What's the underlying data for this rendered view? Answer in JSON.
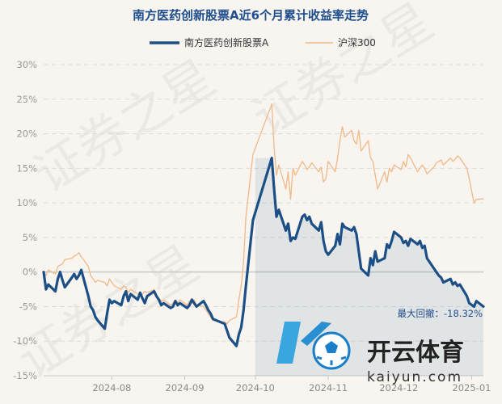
{
  "chart_data": {
    "type": "line",
    "title": "南方医药创新股票A近6个月累计收益率走势",
    "legend_position": "top",
    "y_axis": {
      "min": -15,
      "max": 30,
      "step": 5,
      "ticks": [
        "30%",
        "25%",
        "20%",
        "15%",
        "10%",
        "5%",
        "0%",
        "-5%",
        "-10%",
        "-15%"
      ]
    },
    "x_axis": {
      "range": [
        "2024-07-03",
        "2025-01-06"
      ],
      "ticks": [
        {
          "date": "2024-08-01",
          "label": "2024-08"
        },
        {
          "date": "2024-09-01",
          "label": "2024-09"
        },
        {
          "date": "2024-10-01",
          "label": "2024-10"
        },
        {
          "date": "2024-11-01",
          "label": "2024-11"
        },
        {
          "date": "2024-12-01",
          "label": "2024-12"
        },
        {
          "date": "2025-01-01",
          "label": "2025-01"
        }
      ]
    },
    "grid": "horizontal dashed",
    "drawdown_note": "最大回撤：-18.32%",
    "drawdown_period": [
      "2024-10-01",
      "2025-01-06"
    ],
    "series": [
      {
        "name": "南方医药创新股票A",
        "color": "#1c4f86",
        "points": [
          [
            "2024-07-03",
            0.0
          ],
          [
            "2024-07-04",
            -2.5
          ],
          [
            "2024-07-05",
            -1.8
          ],
          [
            "2024-07-08",
            -2.8
          ],
          [
            "2024-07-09",
            -1.0
          ],
          [
            "2024-07-10",
            0.0
          ],
          [
            "2024-07-11",
            -1.2
          ],
          [
            "2024-07-12",
            -2.2
          ],
          [
            "2024-07-15",
            -0.8
          ],
          [
            "2024-07-16",
            -0.3
          ],
          [
            "2024-07-17",
            -1.0
          ],
          [
            "2024-07-18",
            -0.5
          ],
          [
            "2024-07-19",
            0.3
          ],
          [
            "2024-07-22",
            -3.5
          ],
          [
            "2024-07-23",
            -5.0
          ],
          [
            "2024-07-24",
            -5.5
          ],
          [
            "2024-07-25",
            -6.5
          ],
          [
            "2024-07-26",
            -7.0
          ],
          [
            "2024-07-29",
            -8.2
          ],
          [
            "2024-07-30",
            -6.0
          ],
          [
            "2024-07-31",
            -4.0
          ],
          [
            "2024-08-01",
            -4.5
          ],
          [
            "2024-08-02",
            -4.2
          ],
          [
            "2024-08-05",
            -4.8
          ],
          [
            "2024-08-06",
            -3.5
          ],
          [
            "2024-08-07",
            -2.8
          ],
          [
            "2024-08-08",
            -4.2
          ],
          [
            "2024-08-09",
            -3.2
          ],
          [
            "2024-08-12",
            -4.0
          ],
          [
            "2024-08-13",
            -3.0
          ],
          [
            "2024-08-14",
            -3.8
          ],
          [
            "2024-08-15",
            -4.5
          ],
          [
            "2024-08-16",
            -3.5
          ],
          [
            "2024-08-19",
            -2.8
          ],
          [
            "2024-08-20",
            -3.5
          ],
          [
            "2024-08-21",
            -4.0
          ],
          [
            "2024-08-22",
            -4.8
          ],
          [
            "2024-08-23",
            -4.5
          ],
          [
            "2024-08-26",
            -5.2
          ],
          [
            "2024-08-27",
            -5.0
          ],
          [
            "2024-08-28",
            -4.2
          ],
          [
            "2024-08-29",
            -4.8
          ],
          [
            "2024-08-30",
            -4.5
          ],
          [
            "2024-09-02",
            -5.2
          ],
          [
            "2024-09-03",
            -4.8
          ],
          [
            "2024-09-04",
            -4.0
          ],
          [
            "2024-09-05",
            -4.5
          ],
          [
            "2024-09-06",
            -5.0
          ],
          [
            "2024-09-09",
            -4.2
          ],
          [
            "2024-09-10",
            -4.8
          ],
          [
            "2024-09-11",
            -5.5
          ],
          [
            "2024-09-12",
            -6.0
          ],
          [
            "2024-09-13",
            -6.8
          ],
          [
            "2024-09-18",
            -7.5
          ],
          [
            "2024-09-19",
            -8.5
          ],
          [
            "2024-09-20",
            -9.5
          ],
          [
            "2024-09-23",
            -10.7
          ],
          [
            "2024-09-24",
            -9.0
          ],
          [
            "2024-09-25",
            -8.0
          ],
          [
            "2024-09-26",
            -5.5
          ],
          [
            "2024-09-27",
            -2.0
          ],
          [
            "2024-09-30",
            7.5
          ],
          [
            "2024-10-08",
            16.5
          ],
          [
            "2024-10-09",
            12.0
          ],
          [
            "2024-10-10",
            8.0
          ],
          [
            "2024-10-11",
            9.0
          ],
          [
            "2024-10-14",
            6.0
          ],
          [
            "2024-10-15",
            7.0
          ],
          [
            "2024-10-16",
            4.5
          ],
          [
            "2024-10-17",
            5.0
          ],
          [
            "2024-10-18",
            4.8
          ],
          [
            "2024-10-21",
            8.0
          ],
          [
            "2024-10-22",
            8.3
          ],
          [
            "2024-10-23",
            7.5
          ],
          [
            "2024-10-24",
            8.0
          ],
          [
            "2024-10-25",
            7.0
          ],
          [
            "2024-10-28",
            6.0
          ],
          [
            "2024-10-29",
            7.2
          ],
          [
            "2024-10-30",
            4.5
          ],
          [
            "2024-10-31",
            3.0
          ],
          [
            "2024-11-01",
            2.5
          ],
          [
            "2024-11-04",
            3.8
          ],
          [
            "2024-11-05",
            5.5
          ],
          [
            "2024-11-06",
            4.0
          ],
          [
            "2024-11-07",
            7.0
          ],
          [
            "2024-11-08",
            6.5
          ],
          [
            "2024-11-11",
            6.0
          ],
          [
            "2024-11-12",
            6.5
          ],
          [
            "2024-11-13",
            5.5
          ],
          [
            "2024-11-14",
            3.0
          ],
          [
            "2024-11-15",
            0.5
          ],
          [
            "2024-11-18",
            -0.5
          ],
          [
            "2024-11-19",
            2.0
          ],
          [
            "2024-11-20",
            1.0
          ],
          [
            "2024-11-21",
            3.0
          ],
          [
            "2024-11-22",
            1.5
          ],
          [
            "2024-11-25",
            2.0
          ],
          [
            "2024-11-26",
            4.0
          ],
          [
            "2024-11-27",
            3.5
          ],
          [
            "2024-11-28",
            4.5
          ],
          [
            "2024-11-29",
            5.8
          ],
          [
            "2024-12-02",
            5.0
          ],
          [
            "2024-12-03",
            4.2
          ],
          [
            "2024-12-04",
            4.5
          ],
          [
            "2024-12-05",
            3.8
          ],
          [
            "2024-12-06",
            4.8
          ],
          [
            "2024-12-09",
            4.0
          ],
          [
            "2024-12-10",
            4.5
          ],
          [
            "2024-12-11",
            3.5
          ],
          [
            "2024-12-12",
            3.8
          ],
          [
            "2024-12-13",
            2.0
          ],
          [
            "2024-12-16",
            0.5
          ],
          [
            "2024-12-17",
            0.0
          ],
          [
            "2024-12-18",
            -0.5
          ],
          [
            "2024-12-19",
            -0.8
          ],
          [
            "2024-12-20",
            -1.5
          ],
          [
            "2024-12-23",
            -1.0
          ],
          [
            "2024-12-24",
            -1.8
          ],
          [
            "2024-12-25",
            -1.5
          ],
          [
            "2024-12-26",
            -2.0
          ],
          [
            "2024-12-27",
            -1.8
          ],
          [
            "2024-12-30",
            -3.5
          ],
          [
            "2024-12-31",
            -4.5
          ],
          [
            "2025-01-02",
            -5.0
          ],
          [
            "2025-01-03",
            -4.2
          ],
          [
            "2025-01-06",
            -5.0
          ]
        ]
      },
      {
        "name": "沪深300",
        "color": "#f0b987",
        "points": [
          [
            "2024-07-03",
            0.0
          ],
          [
            "2024-07-04",
            -0.5
          ],
          [
            "2024-07-05",
            0.3
          ],
          [
            "2024-07-08",
            -0.3
          ],
          [
            "2024-07-09",
            0.8
          ],
          [
            "2024-07-10",
            1.0
          ],
          [
            "2024-07-11",
            1.2
          ],
          [
            "2024-07-12",
            1.8
          ],
          [
            "2024-07-15",
            2.0
          ],
          [
            "2024-07-16",
            2.3
          ],
          [
            "2024-07-17",
            2.5
          ],
          [
            "2024-07-18",
            2.8
          ],
          [
            "2024-07-19",
            2.2
          ],
          [
            "2024-07-22",
            0.8
          ],
          [
            "2024-07-23",
            -0.5
          ],
          [
            "2024-07-24",
            -1.0
          ],
          [
            "2024-07-25",
            -1.5
          ],
          [
            "2024-07-26",
            -1.2
          ],
          [
            "2024-07-29",
            -1.5
          ],
          [
            "2024-07-30",
            -2.0
          ],
          [
            "2024-07-31",
            -1.0
          ],
          [
            "2024-08-01",
            -1.5
          ],
          [
            "2024-08-02",
            -2.0
          ],
          [
            "2024-08-05",
            -2.5
          ],
          [
            "2024-08-06",
            -2.0
          ],
          [
            "2024-08-07",
            -2.2
          ],
          [
            "2024-08-08",
            -3.0
          ],
          [
            "2024-08-09",
            -2.5
          ],
          [
            "2024-08-12",
            -3.2
          ],
          [
            "2024-08-13",
            -3.5
          ],
          [
            "2024-08-14",
            -3.2
          ],
          [
            "2024-08-15",
            -2.8
          ],
          [
            "2024-08-16",
            -3.0
          ],
          [
            "2024-08-19",
            -2.5
          ],
          [
            "2024-08-20",
            -3.5
          ],
          [
            "2024-08-21",
            -3.8
          ],
          [
            "2024-08-22",
            -4.2
          ],
          [
            "2024-08-23",
            -4.0
          ],
          [
            "2024-08-26",
            -4.8
          ],
          [
            "2024-08-27",
            -4.5
          ],
          [
            "2024-08-28",
            -4.0
          ],
          [
            "2024-08-29",
            -4.5
          ],
          [
            "2024-08-30",
            -4.0
          ],
          [
            "2024-09-02",
            -4.8
          ],
          [
            "2024-09-03",
            -4.2
          ],
          [
            "2024-09-04",
            -4.5
          ],
          [
            "2024-09-05",
            -4.0
          ],
          [
            "2024-09-06",
            -4.8
          ],
          [
            "2024-09-09",
            -5.0
          ],
          [
            "2024-09-10",
            -5.5
          ],
          [
            "2024-09-11",
            -6.0
          ],
          [
            "2024-09-12",
            -6.5
          ],
          [
            "2024-09-13",
            -7.0
          ],
          [
            "2024-09-18",
            -7.2
          ],
          [
            "2024-09-19",
            -7.5
          ],
          [
            "2024-09-20",
            -7.0
          ],
          [
            "2024-09-23",
            -6.5
          ],
          [
            "2024-09-24",
            -4.0
          ],
          [
            "2024-09-25",
            -2.0
          ],
          [
            "2024-09-26",
            1.5
          ],
          [
            "2024-09-27",
            8.0
          ],
          [
            "2024-09-30",
            17.0
          ],
          [
            "2024-10-08",
            24.3
          ],
          [
            "2024-10-09",
            18.0
          ],
          [
            "2024-10-10",
            14.0
          ],
          [
            "2024-10-11",
            15.5
          ],
          [
            "2024-10-14",
            12.0
          ],
          [
            "2024-10-15",
            14.5
          ],
          [
            "2024-10-16",
            10.5
          ],
          [
            "2024-10-17",
            15.0
          ],
          [
            "2024-10-18",
            14.0
          ],
          [
            "2024-10-21",
            16.0
          ],
          [
            "2024-10-22",
            15.5
          ],
          [
            "2024-10-23",
            14.8
          ],
          [
            "2024-10-24",
            15.2
          ],
          [
            "2024-10-25",
            15.8
          ],
          [
            "2024-10-28",
            14.5
          ],
          [
            "2024-10-29",
            15.2
          ],
          [
            "2024-10-30",
            13.0
          ],
          [
            "2024-10-31",
            13.5
          ],
          [
            "2024-11-01",
            16.0
          ],
          [
            "2024-11-04",
            14.5
          ],
          [
            "2024-11-05",
            16.5
          ],
          [
            "2024-11-06",
            19.0
          ],
          [
            "2024-11-07",
            21.0
          ],
          [
            "2024-11-08",
            19.5
          ],
          [
            "2024-11-11",
            20.5
          ],
          [
            "2024-11-12",
            19.0
          ],
          [
            "2024-11-13",
            18.5
          ],
          [
            "2024-11-14",
            20.5
          ],
          [
            "2024-11-15",
            17.5
          ],
          [
            "2024-11-18",
            19.0
          ],
          [
            "2024-11-19",
            16.5
          ],
          [
            "2024-11-20",
            16.0
          ],
          [
            "2024-11-21",
            14.0
          ],
          [
            "2024-11-22",
            12.0
          ],
          [
            "2024-11-25",
            14.5
          ],
          [
            "2024-11-26",
            13.0
          ],
          [
            "2024-11-27",
            15.0
          ],
          [
            "2024-11-28",
            14.5
          ],
          [
            "2024-11-29",
            15.5
          ],
          [
            "2024-12-02",
            14.8
          ],
          [
            "2024-12-03",
            16.0
          ],
          [
            "2024-12-04",
            15.2
          ],
          [
            "2024-12-05",
            17.0
          ],
          [
            "2024-12-06",
            16.5
          ],
          [
            "2024-12-09",
            14.5
          ],
          [
            "2024-12-10",
            15.0
          ],
          [
            "2024-12-11",
            15.5
          ],
          [
            "2024-12-12",
            15.0
          ],
          [
            "2024-12-13",
            14.2
          ],
          [
            "2024-12-16",
            15.2
          ],
          [
            "2024-12-17",
            15.8
          ],
          [
            "2024-12-18",
            16.0
          ],
          [
            "2024-12-19",
            16.2
          ],
          [
            "2024-12-20",
            15.5
          ],
          [
            "2024-12-23",
            16.5
          ],
          [
            "2024-12-24",
            16.0
          ],
          [
            "2024-12-25",
            16.3
          ],
          [
            "2024-12-26",
            16.8
          ],
          [
            "2024-12-27",
            16.5
          ],
          [
            "2024-12-30",
            15.0
          ],
          [
            "2024-12-31",
            13.5
          ],
          [
            "2025-01-02",
            10.0
          ],
          [
            "2025-01-03",
            10.5
          ],
          [
            "2025-01-06",
            10.6
          ]
        ]
      }
    ]
  },
  "watermark": {
    "lines": [
      "证券之星",
      "证券之星",
      "证券之星"
    ]
  },
  "logo": {
    "brand": "开云体育",
    "domain": "kaiyun.com",
    "mark_letter": "K"
  }
}
